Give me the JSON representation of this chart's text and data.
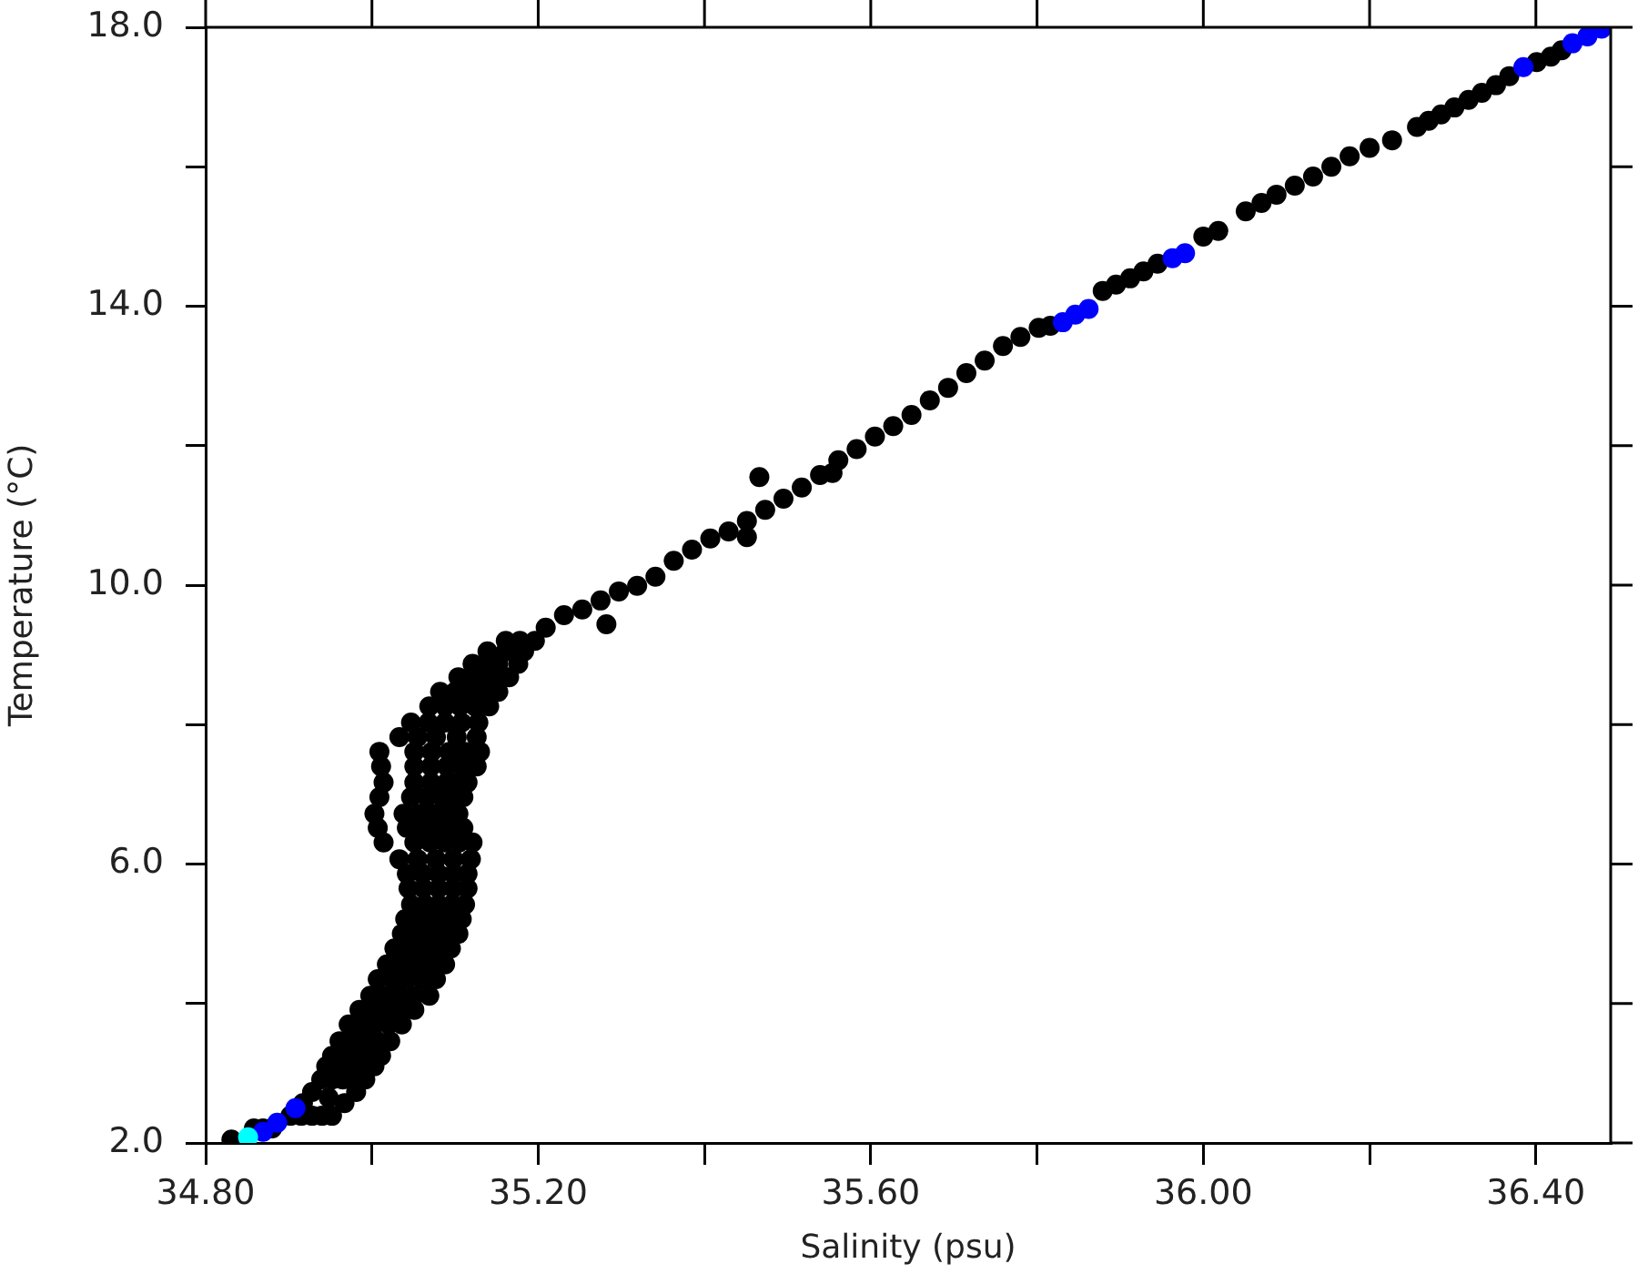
{
  "chart_data": {
    "type": "scatter",
    "xlabel": "Salinity (psu)",
    "ylabel": "Temperature (°C)",
    "xlim": [
      34.8,
      36.49
    ],
    "ylim": [
      2,
      18
    ],
    "xticks": [
      {
        "value": 34.8,
        "label": "34.80"
      },
      {
        "value": 35.0,
        "label": null
      },
      {
        "value": 35.2,
        "label": "35.20"
      },
      {
        "value": 35.4,
        "label": null
      },
      {
        "value": 35.6,
        "label": "35.60"
      },
      {
        "value": 35.8,
        "label": null
      },
      {
        "value": 36.0,
        "label": "36.00"
      },
      {
        "value": 36.2,
        "label": null
      },
      {
        "value": 36.4,
        "label": "36.40"
      }
    ],
    "yticks": [
      {
        "value": 2,
        "label": "2.0"
      },
      {
        "value": 4,
        "label": null
      },
      {
        "value": 6,
        "label": "6.0"
      },
      {
        "value": 8,
        "label": null
      },
      {
        "value": 10,
        "label": "10.0"
      },
      {
        "value": 12,
        "label": null
      },
      {
        "value": 14,
        "label": "14.0"
      },
      {
        "value": 16,
        "label": null
      },
      {
        "value": 18,
        "label": "18.0"
      }
    ],
    "grid": false,
    "legend": false,
    "marker": "circle",
    "series": [
      {
        "color": "#000000",
        "x": [
          34.831,
          34.858,
          34.869,
          34.88,
          34.902,
          34.915,
          34.928,
          34.94,
          34.952,
          34.917,
          34.967,
          34.948,
          34.928,
          34.981,
          34.939,
          34.952,
          34.965,
          34.979,
          34.992,
          34.945,
          34.96,
          34.974,
          34.989,
          35.003,
          34.952,
          34.968,
          34.983,
          34.997,
          35.011,
          34.961,
          34.977,
          34.992,
          35.007,
          35.022,
          34.972,
          34.988,
          35.003,
          35.02,
          35.036,
          34.985,
          35.002,
          35.018,
          35.035,
          35.051,
          34.998,
          35.016,
          35.033,
          35.051,
          35.069,
          35.007,
          35.025,
          35.042,
          35.06,
          35.077,
          35.018,
          35.036,
          35.053,
          35.071,
          35.088,
          35.027,
          35.045,
          35.062,
          35.079,
          35.095,
          35.036,
          35.054,
          35.071,
          35.088,
          35.104,
          35.04,
          35.058,
          35.075,
          35.092,
          35.108,
          35.047,
          35.064,
          35.08,
          35.096,
          35.112,
          35.044,
          35.062,
          35.08,
          35.098,
          35.115,
          35.042,
          35.061,
          35.08,
          35.098,
          35.115,
          35.033,
          35.055,
          35.077,
          35.098,
          35.119,
          35.014,
          35.051,
          35.07,
          35.088,
          35.105,
          35.121,
          35.007,
          35.042,
          35.06,
          35.077,
          35.094,
          35.11,
          35.003,
          35.038,
          35.056,
          35.073,
          35.089,
          35.104,
          35.009,
          35.047,
          35.066,
          35.084,
          35.097,
          35.11,
          35.014,
          35.051,
          35.071,
          35.09,
          35.103,
          35.115,
          35.011,
          35.051,
          35.071,
          35.09,
          35.108,
          35.126,
          35.009,
          35.051,
          35.072,
          35.093,
          35.112,
          35.13,
          35.033,
          35.055,
          35.077,
          35.102,
          35.126,
          35.047,
          35.068,
          35.088,
          35.108,
          35.128,
          35.069,
          35.088,
          35.106,
          35.124,
          35.141,
          35.082,
          35.1,
          35.117,
          35.135,
          35.152,
          35.104,
          35.119,
          35.134,
          35.15,
          35.165,
          35.121,
          35.137,
          35.152,
          35.176,
          35.139,
          35.161,
          35.183,
          35.161,
          35.178,
          35.196,
          35.209,
          35.231,
          35.253,
          35.275,
          35.282,
          35.297,
          35.319,
          35.341,
          35.363,
          35.385,
          35.407,
          35.429,
          35.451,
          35.451,
          35.466,
          35.473,
          35.495,
          35.517,
          35.539,
          35.554,
          35.561,
          35.583,
          35.605,
          35.627,
          35.649,
          35.671,
          35.693,
          35.715,
          35.737,
          35.759,
          35.78,
          35.802,
          35.816,
          35.879,
          35.895,
          35.912,
          35.928,
          35.945,
          36.0,
          36.018,
          36.051,
          36.07,
          36.088,
          36.11,
          36.132,
          36.154,
          36.176,
          36.2,
          36.227,
          36.257,
          36.271,
          36.286,
          36.302,
          36.319,
          36.335,
          36.352,
          36.368,
          36.401,
          36.418,
          36.431
        ],
        "values": [
          2.05,
          2.21,
          2.21,
          2.21,
          2.39,
          2.39,
          2.39,
          2.39,
          2.39,
          2.57,
          2.57,
          2.65,
          2.73,
          2.73,
          2.91,
          2.91,
          2.91,
          2.91,
          2.91,
          3.1,
          3.1,
          3.1,
          3.1,
          3.1,
          3.25,
          3.25,
          3.25,
          3.25,
          3.25,
          3.46,
          3.46,
          3.46,
          3.46,
          3.46,
          3.7,
          3.7,
          3.7,
          3.7,
          3.7,
          3.91,
          3.91,
          3.91,
          3.91,
          3.91,
          4.11,
          4.11,
          4.11,
          4.11,
          4.11,
          4.35,
          4.35,
          4.35,
          4.35,
          4.35,
          4.56,
          4.56,
          4.56,
          4.56,
          4.56,
          4.79,
          4.79,
          4.79,
          4.79,
          4.79,
          5.0,
          5.0,
          5.0,
          5.0,
          5.0,
          5.21,
          5.21,
          5.21,
          5.21,
          5.21,
          5.42,
          5.42,
          5.42,
          5.42,
          5.42,
          5.65,
          5.65,
          5.65,
          5.65,
          5.65,
          5.86,
          5.86,
          5.86,
          5.86,
          5.86,
          6.07,
          6.07,
          6.07,
          6.07,
          6.07,
          6.31,
          6.31,
          6.31,
          6.31,
          6.31,
          6.31,
          6.52,
          6.52,
          6.52,
          6.52,
          6.52,
          6.52,
          6.72,
          6.72,
          6.72,
          6.72,
          6.72,
          6.72,
          6.96,
          6.96,
          6.96,
          6.96,
          6.96,
          6.96,
          7.17,
          7.17,
          7.17,
          7.17,
          7.17,
          7.17,
          7.4,
          7.4,
          7.4,
          7.4,
          7.4,
          7.4,
          7.61,
          7.61,
          7.61,
          7.61,
          7.61,
          7.61,
          7.82,
          7.82,
          7.82,
          7.82,
          7.82,
          8.03,
          8.03,
          8.03,
          8.03,
          8.03,
          8.26,
          8.26,
          8.26,
          8.26,
          8.26,
          8.47,
          8.47,
          8.47,
          8.47,
          8.47,
          8.68,
          8.68,
          8.68,
          8.68,
          8.68,
          8.87,
          8.87,
          8.87,
          8.87,
          9.05,
          9.05,
          9.05,
          9.2,
          9.2,
          9.2,
          9.39,
          9.57,
          9.65,
          9.78,
          9.44,
          9.91,
          9.99,
          10.12,
          10.35,
          10.51,
          10.67,
          10.77,
          10.92,
          10.69,
          11.55,
          11.08,
          11.24,
          11.4,
          11.58,
          11.61,
          11.79,
          11.95,
          12.13,
          12.28,
          12.44,
          12.65,
          12.83,
          13.04,
          13.22,
          13.43,
          13.56,
          13.69,
          13.72,
          14.22,
          14.31,
          14.4,
          14.5,
          14.61,
          15.0,
          15.08,
          15.36,
          15.48,
          15.6,
          15.73,
          15.86,
          16.0,
          16.15,
          16.27,
          16.38,
          16.57,
          16.66,
          16.75,
          16.85,
          16.96,
          17.06,
          17.17,
          17.3,
          17.5,
          17.58,
          17.67
        ]
      },
      {
        "color": "#0000ff",
        "x": [
          34.869,
          34.886,
          34.908,
          35.831,
          35.846,
          35.862,
          35.963,
          35.978,
          36.385,
          36.444,
          36.462,
          36.479
        ],
        "values": [
          2.16,
          2.29,
          2.5,
          13.77,
          13.88,
          13.96,
          14.69,
          14.76,
          17.43,
          17.77,
          17.87,
          17.98
        ]
      },
      {
        "color": "#00ffff",
        "x": [
          34.851
        ],
        "values": [
          2.08
        ]
      }
    ]
  }
}
